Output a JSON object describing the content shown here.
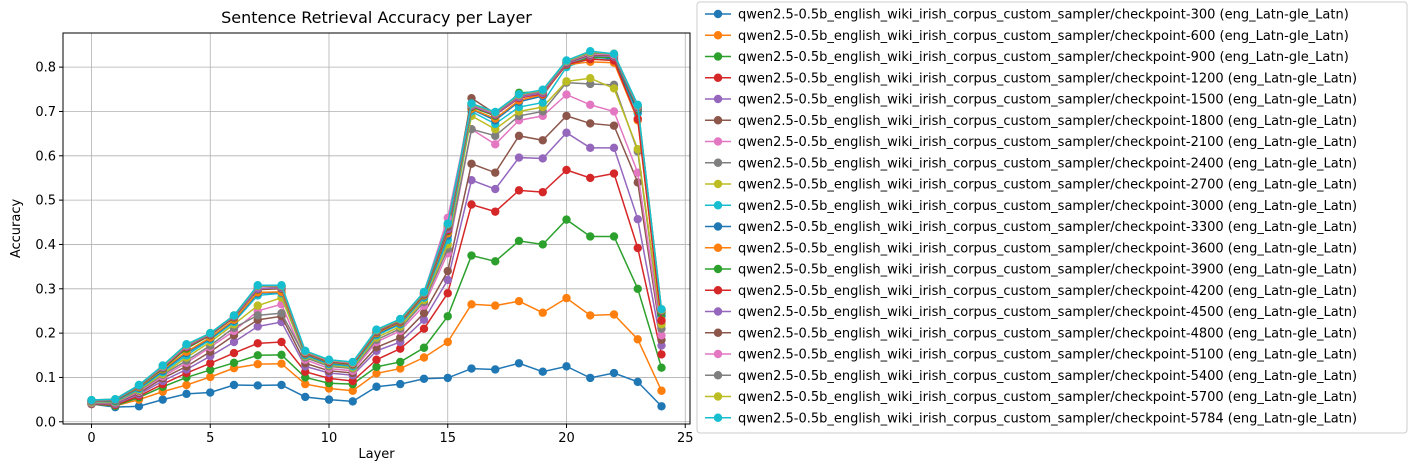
{
  "chart_data": {
    "type": "line",
    "title": "Sentence Retrieval Accuracy per Layer",
    "xlabel": "Layer",
    "ylabel": "Accuracy",
    "xlim": [
      -1.2,
      25.2
    ],
    "ylim": [
      -0.005,
      0.877
    ],
    "xticks": [
      0,
      5,
      10,
      15,
      20,
      25
    ],
    "yticks": [
      0.0,
      0.1,
      0.2,
      0.3,
      0.4,
      0.5,
      0.6,
      0.7,
      0.8
    ],
    "ytick_labels": [
      "0.0",
      "0.1",
      "0.2",
      "0.3",
      "0.4",
      "0.5",
      "0.6",
      "0.7",
      "0.8"
    ],
    "grid": true,
    "legend_position": "outside-right",
    "x": [
      0,
      1,
      2,
      3,
      4,
      5,
      6,
      7,
      8,
      9,
      10,
      11,
      12,
      13,
      14,
      15,
      16,
      17,
      18,
      19,
      20,
      21,
      22,
      23,
      24
    ],
    "series": [
      {
        "name": "qwen2.5-0.5b_english_wiki_irish_corpus_custom_sampler/checkpoint-300 (eng_Latn-gle_Latn)",
        "color": "#1f77b4",
        "values": [
          0.04,
          0.033,
          0.035,
          0.05,
          0.063,
          0.066,
          0.083,
          0.082,
          0.083,
          0.056,
          0.05,
          0.046,
          0.079,
          0.085,
          0.097,
          0.099,
          0.12,
          0.118,
          0.132,
          0.113,
          0.125,
          0.099,
          0.11,
          0.09,
          0.035
        ]
      },
      {
        "name": "qwen2.5-0.5b_english_wiki_irish_corpus_custom_sampler/checkpoint-600 (eng_Latn-gle_Latn)",
        "color": "#ff7f0e",
        "values": [
          0.04,
          0.036,
          0.05,
          0.068,
          0.083,
          0.101,
          0.121,
          0.13,
          0.131,
          0.085,
          0.075,
          0.07,
          0.109,
          0.12,
          0.145,
          0.18,
          0.265,
          0.262,
          0.272,
          0.246,
          0.279,
          0.24,
          0.242,
          0.186,
          0.07
        ]
      },
      {
        "name": "qwen2.5-0.5b_english_wiki_irish_corpus_custom_sampler/checkpoint-900 (eng_Latn-gle_Latn)",
        "color": "#2ca02c",
        "values": [
          0.04,
          0.036,
          0.055,
          0.079,
          0.1,
          0.117,
          0.133,
          0.15,
          0.151,
          0.1,
          0.087,
          0.085,
          0.124,
          0.135,
          0.167,
          0.238,
          0.375,
          0.362,
          0.408,
          0.4,
          0.456,
          0.418,
          0.418,
          0.3,
          0.122
        ]
      },
      {
        "name": "qwen2.5-0.5b_english_wiki_irish_corpus_custom_sampler/checkpoint-1200 (eng_Latn-gle_Latn)",
        "color": "#d62728",
        "values": [
          0.04,
          0.038,
          0.058,
          0.085,
          0.11,
          0.132,
          0.155,
          0.177,
          0.18,
          0.113,
          0.098,
          0.092,
          0.14,
          0.165,
          0.21,
          0.29,
          0.49,
          0.474,
          0.522,
          0.518,
          0.568,
          0.55,
          0.56,
          0.392,
          0.152
        ]
      },
      {
        "name": "qwen2.5-0.5b_english_wiki_irish_corpus_custom_sampler/checkpoint-1500 (eng_Latn-gle_Latn)",
        "color": "#9467bd",
        "values": [
          0.04,
          0.04,
          0.062,
          0.092,
          0.118,
          0.148,
          0.18,
          0.215,
          0.225,
          0.125,
          0.11,
          0.105,
          0.16,
          0.18,
          0.23,
          0.32,
          0.545,
          0.525,
          0.596,
          0.594,
          0.652,
          0.618,
          0.618,
          0.457,
          0.172
        ]
      },
      {
        "name": "qwen2.5-0.5b_english_wiki_irish_corpus_custom_sampler/checkpoint-1800 (eng_Latn-gle_Latn)",
        "color": "#8c564b",
        "values": [
          0.04,
          0.042,
          0.065,
          0.098,
          0.125,
          0.158,
          0.195,
          0.23,
          0.238,
          0.132,
          0.115,
          0.11,
          0.168,
          0.19,
          0.245,
          0.34,
          0.582,
          0.562,
          0.645,
          0.635,
          0.69,
          0.673,
          0.668,
          0.54,
          0.185
        ]
      },
      {
        "name": "qwen2.5-0.5b_english_wiki_irish_corpus_custom_sampler/checkpoint-2100 (eng_Latn-gle_Latn)",
        "color": "#e377c2",
        "values": [
          0.042,
          0.043,
          0.068,
          0.102,
          0.133,
          0.168,
          0.205,
          0.25,
          0.265,
          0.14,
          0.12,
          0.115,
          0.18,
          0.205,
          0.262,
          0.38,
          0.66,
          0.626,
          0.68,
          0.69,
          0.738,
          0.715,
          0.7,
          0.562,
          0.195
        ]
      },
      {
        "name": "qwen2.5-0.5b_english_wiki_irish_corpus_custom_sampler/checkpoint-2400 (eng_Latn-gle_Latn)",
        "color": "#7f7f7f",
        "values": [
          0.043,
          0.044,
          0.07,
          0.106,
          0.138,
          0.172,
          0.212,
          0.24,
          0.245,
          0.145,
          0.125,
          0.12,
          0.185,
          0.21,
          0.27,
          0.39,
          0.66,
          0.645,
          0.69,
          0.7,
          0.765,
          0.762,
          0.76,
          0.61,
          0.21
        ]
      },
      {
        "name": "qwen2.5-0.5b_english_wiki_irish_corpus_custom_sampler/checkpoint-2700 (eng_Latn-gle_Latn)",
        "color": "#bcbd22",
        "values": [
          0.044,
          0.045,
          0.072,
          0.108,
          0.145,
          0.18,
          0.22,
          0.262,
          0.28,
          0.148,
          0.128,
          0.122,
          0.19,
          0.215,
          0.275,
          0.4,
          0.69,
          0.66,
          0.7,
          0.71,
          0.768,
          0.775,
          0.752,
          0.615,
          0.22
        ]
      },
      {
        "name": "qwen2.5-0.5b_english_wiki_irish_corpus_custom_sampler/checkpoint-3000 (eng_Latn-gle_Latn)",
        "color": "#17becf",
        "values": [
          0.045,
          0.046,
          0.074,
          0.112,
          0.15,
          0.185,
          0.225,
          0.285,
          0.29,
          0.15,
          0.13,
          0.125,
          0.195,
          0.22,
          0.28,
          0.41,
          0.7,
          0.672,
          0.71,
          0.72,
          0.8,
          0.82,
          0.815,
          0.695,
          0.238
        ]
      },
      {
        "name": "qwen2.5-0.5b_english_wiki_irish_corpus_custom_sampler/checkpoint-3300 (eng_Latn-gle_Latn)",
        "color": "#1f77b4",
        "values": [
          0.046,
          0.047,
          0.076,
          0.115,
          0.155,
          0.188,
          0.228,
          0.29,
          0.292,
          0.152,
          0.132,
          0.128,
          0.198,
          0.222,
          0.283,
          0.42,
          0.705,
          0.68,
          0.722,
          0.735,
          0.81,
          0.825,
          0.818,
          0.7,
          0.24
        ]
      },
      {
        "name": "qwen2.5-0.5b_english_wiki_irish_corpus_custom_sampler/checkpoint-3600 (eng_Latn-gle_Latn)",
        "color": "#ff7f0e",
        "values": [
          0.046,
          0.048,
          0.078,
          0.118,
          0.158,
          0.19,
          0.23,
          0.292,
          0.293,
          0.154,
          0.134,
          0.129,
          0.2,
          0.224,
          0.285,
          0.425,
          0.706,
          0.684,
          0.725,
          0.738,
          0.805,
          0.812,
          0.81,
          0.68,
          0.23
        ]
      },
      {
        "name": "qwen2.5-0.5b_english_wiki_irish_corpus_custom_sampler/checkpoint-3900 (eng_Latn-gle_Latn)",
        "color": "#2ca02c",
        "values": [
          0.047,
          0.048,
          0.08,
          0.12,
          0.165,
          0.195,
          0.235,
          0.298,
          0.3,
          0.155,
          0.135,
          0.13,
          0.202,
          0.226,
          0.287,
          0.43,
          0.71,
          0.69,
          0.742,
          0.745,
          0.805,
          0.822,
          0.822,
          0.705,
          0.245
        ]
      },
      {
        "name": "qwen2.5-0.5b_english_wiki_irish_corpus_custom_sampler/checkpoint-4200 (eng_Latn-gle_Latn)",
        "color": "#d62728",
        "values": [
          0.047,
          0.049,
          0.081,
          0.122,
          0.168,
          0.196,
          0.236,
          0.299,
          0.301,
          0.156,
          0.136,
          0.131,
          0.203,
          0.227,
          0.288,
          0.432,
          0.712,
          0.692,
          0.73,
          0.74,
          0.806,
          0.818,
          0.815,
          0.683,
          0.228
        ]
      },
      {
        "name": "qwen2.5-0.5b_english_wiki_irish_corpus_custom_sampler/checkpoint-4500 (eng_Latn-gle_Latn)",
        "color": "#9467bd",
        "values": [
          0.047,
          0.049,
          0.081,
          0.123,
          0.17,
          0.197,
          0.237,
          0.3,
          0.302,
          0.157,
          0.137,
          0.132,
          0.204,
          0.228,
          0.289,
          0.435,
          0.713,
          0.693,
          0.732,
          0.742,
          0.808,
          0.826,
          0.824,
          0.708,
          0.25
        ]
      },
      {
        "name": "qwen2.5-0.5b_english_wiki_irish_corpus_custom_sampler/checkpoint-4800 (eng_Latn-gle_Latn)",
        "color": "#8c564b",
        "values": [
          0.048,
          0.05,
          0.082,
          0.125,
          0.172,
          0.198,
          0.238,
          0.305,
          0.305,
          0.158,
          0.138,
          0.133,
          0.205,
          0.229,
          0.29,
          0.44,
          0.73,
          0.695,
          0.735,
          0.745,
          0.81,
          0.828,
          0.826,
          0.71,
          0.25
        ]
      },
      {
        "name": "qwen2.5-0.5b_english_wiki_irish_corpus_custom_sampler/checkpoint-5100 (eng_Latn-gle_Latn)",
        "color": "#e377c2",
        "values": [
          0.048,
          0.05,
          0.082,
          0.125,
          0.172,
          0.199,
          0.239,
          0.305,
          0.306,
          0.158,
          0.138,
          0.133,
          0.206,
          0.23,
          0.291,
          0.46,
          0.715,
          0.696,
          0.736,
          0.746,
          0.812,
          0.83,
          0.828,
          0.712,
          0.252
        ]
      },
      {
        "name": "qwen2.5-0.5b_english_wiki_irish_corpus_custom_sampler/checkpoint-5400 (eng_Latn-gle_Latn)",
        "color": "#7f7f7f",
        "values": [
          0.048,
          0.05,
          0.082,
          0.126,
          0.173,
          0.199,
          0.239,
          0.306,
          0.306,
          0.159,
          0.139,
          0.134,
          0.206,
          0.23,
          0.291,
          0.445,
          0.716,
          0.697,
          0.737,
          0.747,
          0.813,
          0.832,
          0.83,
          0.713,
          0.252
        ]
      },
      {
        "name": "qwen2.5-0.5b_english_wiki_irish_corpus_custom_sampler/checkpoint-5700 (eng_Latn-gle_Latn)",
        "color": "#bcbd22",
        "values": [
          0.049,
          0.051,
          0.083,
          0.126,
          0.174,
          0.2,
          0.24,
          0.307,
          0.307,
          0.159,
          0.139,
          0.134,
          0.207,
          0.231,
          0.292,
          0.446,
          0.717,
          0.698,
          0.738,
          0.748,
          0.814,
          0.834,
          0.83,
          0.714,
          0.253
        ]
      },
      {
        "name": "qwen2.5-0.5b_english_wiki_irish_corpus_custom_sampler/checkpoint-5784 (eng_Latn-gle_Latn)",
        "color": "#17becf",
        "values": [
          0.049,
          0.051,
          0.083,
          0.127,
          0.175,
          0.2,
          0.24,
          0.308,
          0.308,
          0.16,
          0.14,
          0.135,
          0.208,
          0.232,
          0.293,
          0.447,
          0.718,
          0.699,
          0.739,
          0.749,
          0.815,
          0.836,
          0.83,
          0.715,
          0.254
        ]
      }
    ]
  }
}
